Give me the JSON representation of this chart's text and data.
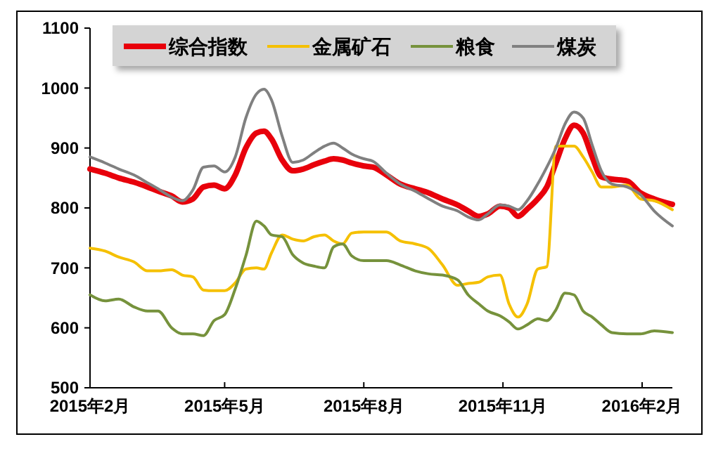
{
  "chart_data": {
    "type": "line",
    "legend": "top",
    "grid": false,
    "marker": "none",
    "line_style": "solid",
    "xlim": [
      "2015-02-01",
      "2016-02-21"
    ],
    "xticks": [
      {
        "value": "2015-02-01",
        "label": "2015年2月"
      },
      {
        "value": "2015-05-01",
        "label": "2015年5月"
      },
      {
        "value": "2015-08-01",
        "label": "2015年8月"
      },
      {
        "value": "2015-11-01",
        "label": "2015年11月"
      },
      {
        "value": "2016-02-01",
        "label": "2016年2月"
      }
    ],
    "ylim": [
      500,
      1100
    ],
    "yticks": [
      500,
      600,
      700,
      800,
      900,
      1000,
      1100
    ],
    "x": [
      "2015-02-01",
      "2015-02-11",
      "2015-02-20",
      "2015-03-02",
      "2015-03-11",
      "2015-03-18",
      "2015-03-27",
      "2015-04-03",
      "2015-04-10",
      "2015-04-17",
      "2015-04-24",
      "2015-05-01",
      "2015-05-08",
      "2015-05-15",
      "2015-05-22",
      "2015-05-27",
      "2015-06-01",
      "2015-06-08",
      "2015-06-15",
      "2015-06-22",
      "2015-06-29",
      "2015-07-06",
      "2015-07-12",
      "2015-07-18",
      "2015-07-24",
      "2015-08-01",
      "2015-08-07",
      "2015-08-16",
      "2015-08-25",
      "2015-09-04",
      "2015-09-13",
      "2015-09-22",
      "2015-10-02",
      "2015-10-09",
      "2015-10-16",
      "2015-10-22",
      "2015-10-30",
      "2015-11-05",
      "2015-11-11",
      "2015-11-17",
      "2015-11-24",
      "2015-11-30",
      "2015-12-06",
      "2015-12-12",
      "2015-12-18",
      "2015-12-24",
      "2015-12-30",
      "2016-01-05",
      "2016-01-12",
      "2016-01-22",
      "2016-01-31",
      "2016-02-09",
      "2016-02-21"
    ],
    "series": [
      {
        "name": "综合指数",
        "color": "#e8000b",
        "values": [
          865,
          858,
          850,
          843,
          835,
          828,
          820,
          810,
          815,
          835,
          838,
          832,
          855,
          900,
          925,
          928,
          915,
          880,
          862,
          865,
          872,
          878,
          882,
          880,
          875,
          870,
          868,
          855,
          840,
          832,
          825,
          815,
          805,
          795,
          786,
          790,
          803,
          800,
          786,
          798,
          815,
          835,
          875,
          915,
          938,
          925,
          885,
          852,
          848,
          845,
          825,
          815,
          806
        ]
      },
      {
        "name": "金属矿石",
        "color": "#f5c000",
        "values": [
          733,
          728,
          718,
          710,
          695,
          695,
          697,
          688,
          685,
          663,
          662,
          662,
          675,
          698,
          700,
          698,
          725,
          755,
          748,
          745,
          752,
          755,
          745,
          740,
          758,
          760,
          760,
          760,
          745,
          740,
          732,
          705,
          671,
          674,
          676,
          685,
          688,
          640,
          618,
          640,
          698,
          702,
          903,
          903,
          903,
          885,
          860,
          835,
          835,
          838,
          815,
          812,
          797
        ]
      },
      {
        "name": "粮食",
        "color": "#76923c",
        "values": [
          655,
          645,
          648,
          635,
          628,
          628,
          600,
          590,
          590,
          587,
          612,
          622,
          665,
          720,
          778,
          770,
          755,
          752,
          722,
          708,
          703,
          700,
          735,
          740,
          720,
          712,
          712,
          712,
          705,
          695,
          690,
          688,
          680,
          655,
          640,
          628,
          620,
          610,
          598,
          605,
          615,
          612,
          630,
          658,
          655,
          628,
          618,
          605,
          592,
          590,
          590,
          595,
          592
        ]
      },
      {
        "name": "煤炭",
        "color": "#808080",
        "values": [
          885,
          875,
          865,
          855,
          842,
          832,
          818,
          812,
          830,
          868,
          870,
          860,
          885,
          950,
          990,
          998,
          980,
          920,
          876,
          880,
          892,
          903,
          908,
          900,
          890,
          882,
          878,
          858,
          840,
          828,
          815,
          803,
          795,
          785,
          780,
          790,
          805,
          803,
          797,
          812,
          840,
          868,
          900,
          940,
          960,
          950,
          905,
          862,
          840,
          835,
          822,
          795,
          770
        ]
      }
    ]
  }
}
